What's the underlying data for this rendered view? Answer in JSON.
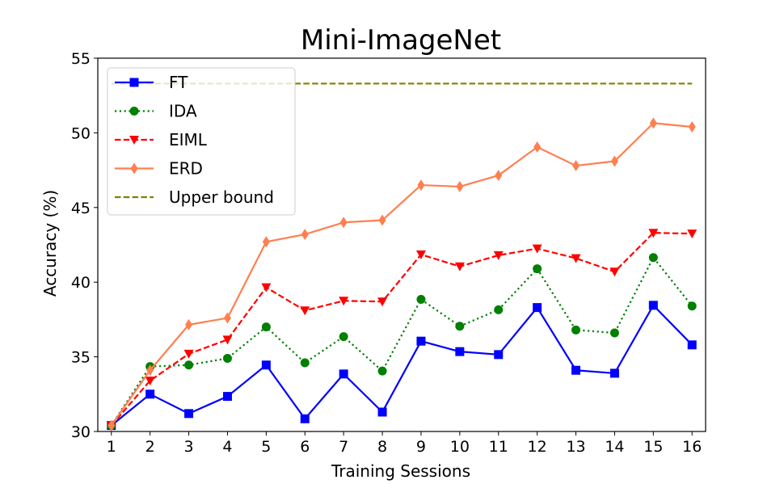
{
  "chart_data": {
    "type": "line",
    "title": "Mini-ImageNet",
    "xlabel": "Training Sessions",
    "ylabel": "Accuracy (%)",
    "x": [
      1,
      2,
      3,
      4,
      5,
      6,
      7,
      8,
      9,
      10,
      11,
      12,
      13,
      14,
      15,
      16
    ],
    "xticks": [
      "1",
      "2",
      "3",
      "4",
      "5",
      "6",
      "7",
      "8",
      "9",
      "10",
      "11",
      "12",
      "13",
      "14",
      "15",
      "16"
    ],
    "ylim": [
      30,
      55
    ],
    "yticks": [
      30,
      35,
      40,
      45,
      50,
      55
    ],
    "legend_position": "top-left",
    "grid": false,
    "series": [
      {
        "name": "FT",
        "color": "#0000ff",
        "line": "solid",
        "marker": "square",
        "values": [
          30.4,
          32.5,
          31.2,
          32.35,
          34.45,
          30.85,
          33.85,
          31.3,
          36.05,
          35.35,
          35.15,
          38.3,
          34.1,
          33.9,
          38.45,
          35.8
        ]
      },
      {
        "name": "IDA",
        "color": "#008000",
        "line": "dotted",
        "marker": "circle",
        "values": [
          30.4,
          34.35,
          34.45,
          34.9,
          37.0,
          34.6,
          36.35,
          34.05,
          38.85,
          37.05,
          38.15,
          40.9,
          36.8,
          36.6,
          41.65,
          38.4
        ]
      },
      {
        "name": "EIML",
        "color": "#ff0000",
        "line": "dashed",
        "marker": "triangle-down",
        "values": [
          30.4,
          33.4,
          35.2,
          36.15,
          39.65,
          38.1,
          38.75,
          38.7,
          41.85,
          41.05,
          41.8,
          42.25,
          41.6,
          40.7,
          43.3,
          43.25
        ]
      },
      {
        "name": "ERD",
        "color": "#ff7f50",
        "line": "solid",
        "marker": "thin-diamond",
        "values": [
          30.4,
          34.1,
          37.15,
          37.6,
          42.7,
          43.2,
          44.0,
          44.15,
          46.5,
          46.4,
          47.15,
          49.05,
          47.8,
          48.1,
          50.65,
          50.4
        ]
      },
      {
        "name": "Upper bound",
        "color": "#808000",
        "line": "dashed",
        "marker": "none",
        "values": [
          53.3,
          53.3,
          53.3,
          53.3,
          53.3,
          53.3,
          53.3,
          53.3,
          53.3,
          53.3,
          53.3,
          53.3,
          53.3,
          53.3,
          53.3,
          53.3
        ]
      }
    ]
  }
}
